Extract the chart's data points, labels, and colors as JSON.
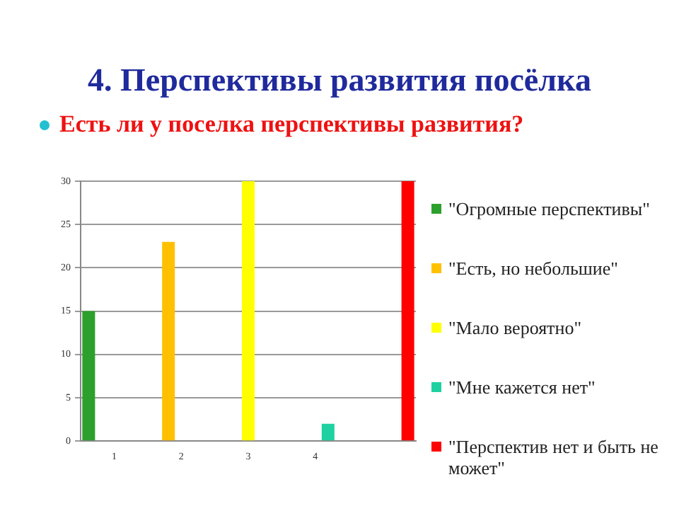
{
  "chart_data": {
    "type": "bar",
    "title": "4. Перспективы развития посёлка",
    "subtitle": "Есть ли у поселка перспективы развития?",
    "categories": [
      "1",
      "2",
      "3",
      "4",
      null
    ],
    "series": [
      {
        "name": "\"Огромные перспективы\"",
        "color": "#2ca02c",
        "values": [
          15,
          null,
          null,
          null,
          null
        ]
      },
      {
        "name": "\"Есть, но небольшие\"",
        "color": "#ffc000",
        "values": [
          null,
          23,
          null,
          null,
          null
        ]
      },
      {
        "name": "\"Мало вероятно\"",
        "color": "#ffff00",
        "values": [
          null,
          null,
          30,
          null,
          null
        ]
      },
      {
        "name": "\"Мне кажется нет\"",
        "color": "#1fd1a0",
        "values": [
          null,
          null,
          null,
          2,
          null
        ]
      },
      {
        "name": "\"Перспектив нет и быть не может\"",
        "color": "#ff0000",
        "values": [
          null,
          null,
          null,
          null,
          30
        ]
      }
    ],
    "ylim": [
      0,
      30
    ],
    "yticks": [
      0,
      5,
      10,
      15,
      20,
      25,
      30
    ],
    "grid": "y",
    "legend": "right"
  }
}
